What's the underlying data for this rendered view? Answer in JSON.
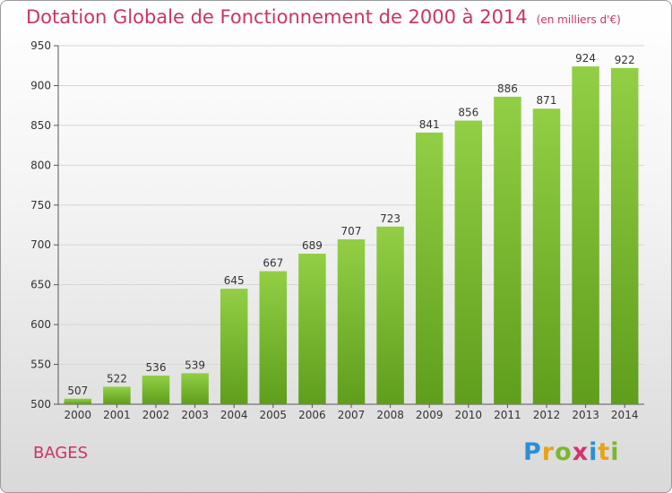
{
  "chart_data": {
    "type": "bar",
    "title": "Dotation Globale de Fonctionnement de 2000 à 2014",
    "subtitle": "(en milliers d'€)",
    "categories": [
      "2000",
      "2001",
      "2002",
      "2003",
      "2004",
      "2005",
      "2006",
      "2007",
      "2008",
      "2009",
      "2010",
      "2011",
      "2012",
      "2013",
      "2014"
    ],
    "values": [
      507,
      522,
      536,
      539,
      645,
      667,
      689,
      707,
      723,
      841,
      856,
      886,
      871,
      924,
      922
    ],
    "ylim": [
      500,
      950
    ],
    "yticks": [
      500,
      550,
      600,
      650,
      700,
      750,
      800,
      850,
      900,
      950
    ],
    "grid": true,
    "bar_color": "#7fbf35"
  },
  "commune": "BAGES",
  "logo": {
    "text": "Proxiti",
    "letters": [
      {
        "ch": "P",
        "color": "#2b8fd6"
      },
      {
        "ch": "r",
        "color": "#e8a317"
      },
      {
        "ch": "o",
        "color": "#7ab82f"
      },
      {
        "ch": "x",
        "color": "#d6336c"
      },
      {
        "ch": "i",
        "color": "#2b8fd6"
      },
      {
        "ch": "t",
        "color": "#e8a317"
      },
      {
        "ch": "i",
        "color": "#7ab82f"
      }
    ]
  }
}
